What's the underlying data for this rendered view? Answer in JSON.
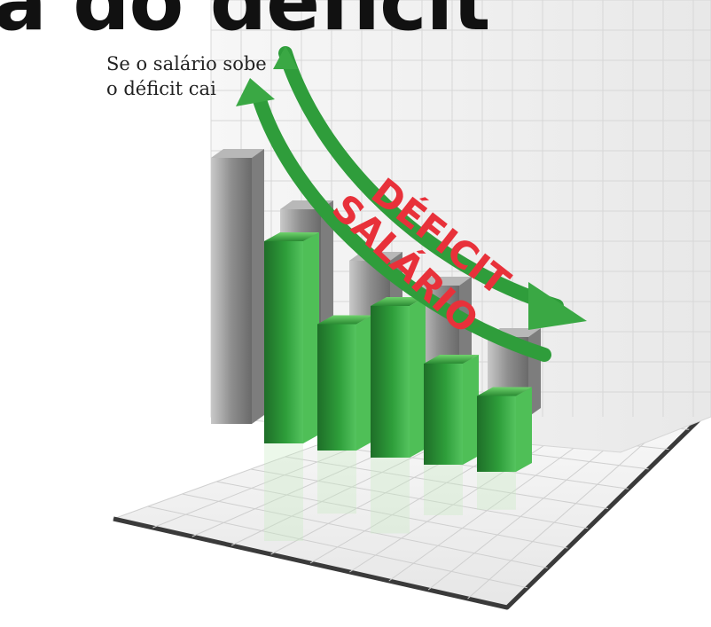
{
  "headline": "a do déficit",
  "subtitle": {
    "line1": "Se o salário sobe",
    "line2": "o déficit cai"
  },
  "colors": {
    "salary_bars": "#2e9d3a",
    "deficit_bars": "#9a9a9a",
    "arrow": "#3aa844",
    "arrow_label": "#e8313a",
    "floor": "#f2f2f2"
  },
  "chart_data": {
    "type": "bar",
    "title": "",
    "xlabel": "",
    "ylabel": "",
    "grid": true,
    "series": [
      {
        "name": "SALÁRIO",
        "values": [
          8,
          5,
          6,
          4,
          3
        ]
      },
      {
        "name": "DÉFICIT",
        "values": [
          10,
          8,
          6,
          5,
          3
        ]
      }
    ],
    "annotations": [
      {
        "text": "DÉFICIT",
        "direction": "down"
      },
      {
        "text": "SALÁRIO",
        "direction": "up"
      }
    ]
  }
}
